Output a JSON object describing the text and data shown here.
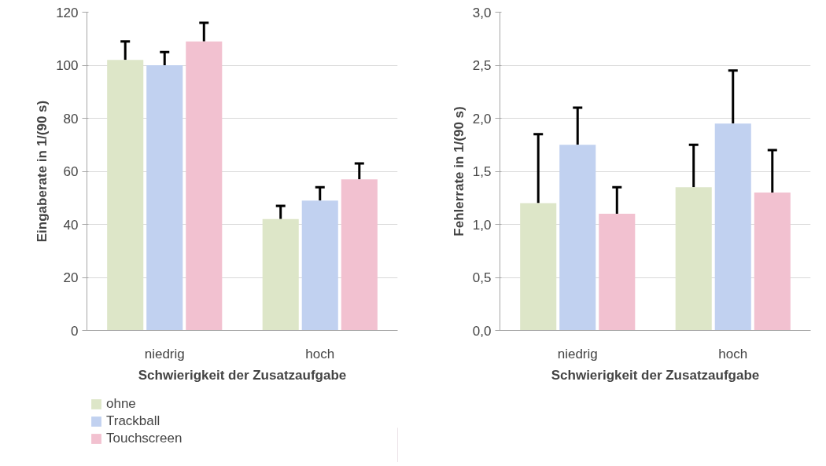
{
  "chart_data": [
    {
      "type": "bar",
      "xlabel": "Schwierigkeit der Zusatzaufgabe",
      "ylabel": "Eingaberate in 1/(90 s)",
      "categories": [
        "niedrig",
        "hoch"
      ],
      "ylim": [
        0,
        120
      ],
      "yticks": [
        0,
        20,
        40,
        60,
        80,
        100,
        120
      ],
      "grid": "y",
      "legend": "bottom left",
      "series": [
        {
          "name": "ohne",
          "color": "#dde6c8",
          "values": [
            102,
            42
          ],
          "errors": [
            [
              102,
              109
            ],
            [
              42,
              47
            ]
          ]
        },
        {
          "name": "Trackball",
          "color": "#c1d1f0",
          "values": [
            100,
            49
          ],
          "errors": [
            [
              100,
              105
            ],
            [
              49,
              54
            ]
          ]
        },
        {
          "name": "Touchscreen",
          "color": "#f2c1d0",
          "values": [
            109,
            57
          ],
          "errors": [
            [
              109,
              116
            ],
            [
              57,
              63
            ]
          ]
        }
      ]
    },
    {
      "type": "bar",
      "xlabel": "Schwierigkeit der Zusatzaufgabe",
      "ylabel": "Fehlerrate in 1/(90 s)",
      "categories": [
        "niedrig",
        "hoch"
      ],
      "ylim": [
        0,
        3
      ],
      "yticks": [
        {
          "value": 0,
          "label": "0,0"
        },
        {
          "value": 0.5,
          "label": "0,5"
        },
        {
          "value": 1,
          "label": "1,0"
        },
        {
          "value": 1.5,
          "label": "1,5"
        },
        {
          "value": 2,
          "label": "2,0"
        },
        {
          "value": 2.5,
          "label": "2,5"
        },
        {
          "value": 3,
          "label": "3,0"
        }
      ],
      "grid": "y",
      "series": [
        {
          "color": "#dde6c8",
          "values": [
            1.2,
            1.35
          ],
          "errors": [
            [
              1.2,
              1.85
            ],
            [
              1.35,
              1.75
            ]
          ]
        },
        {
          "color": "#c1d1f0",
          "values": [
            1.75,
            1.95
          ],
          "errors": [
            [
              1.75,
              2.1
            ],
            [
              1.95,
              2.45
            ]
          ]
        },
        {
          "color": "#f2c1d0",
          "values": [
            1.1,
            1.3
          ],
          "errors": [
            [
              1.1,
              1.35
            ],
            [
              1.3,
              1.7
            ]
          ]
        }
      ]
    }
  ]
}
